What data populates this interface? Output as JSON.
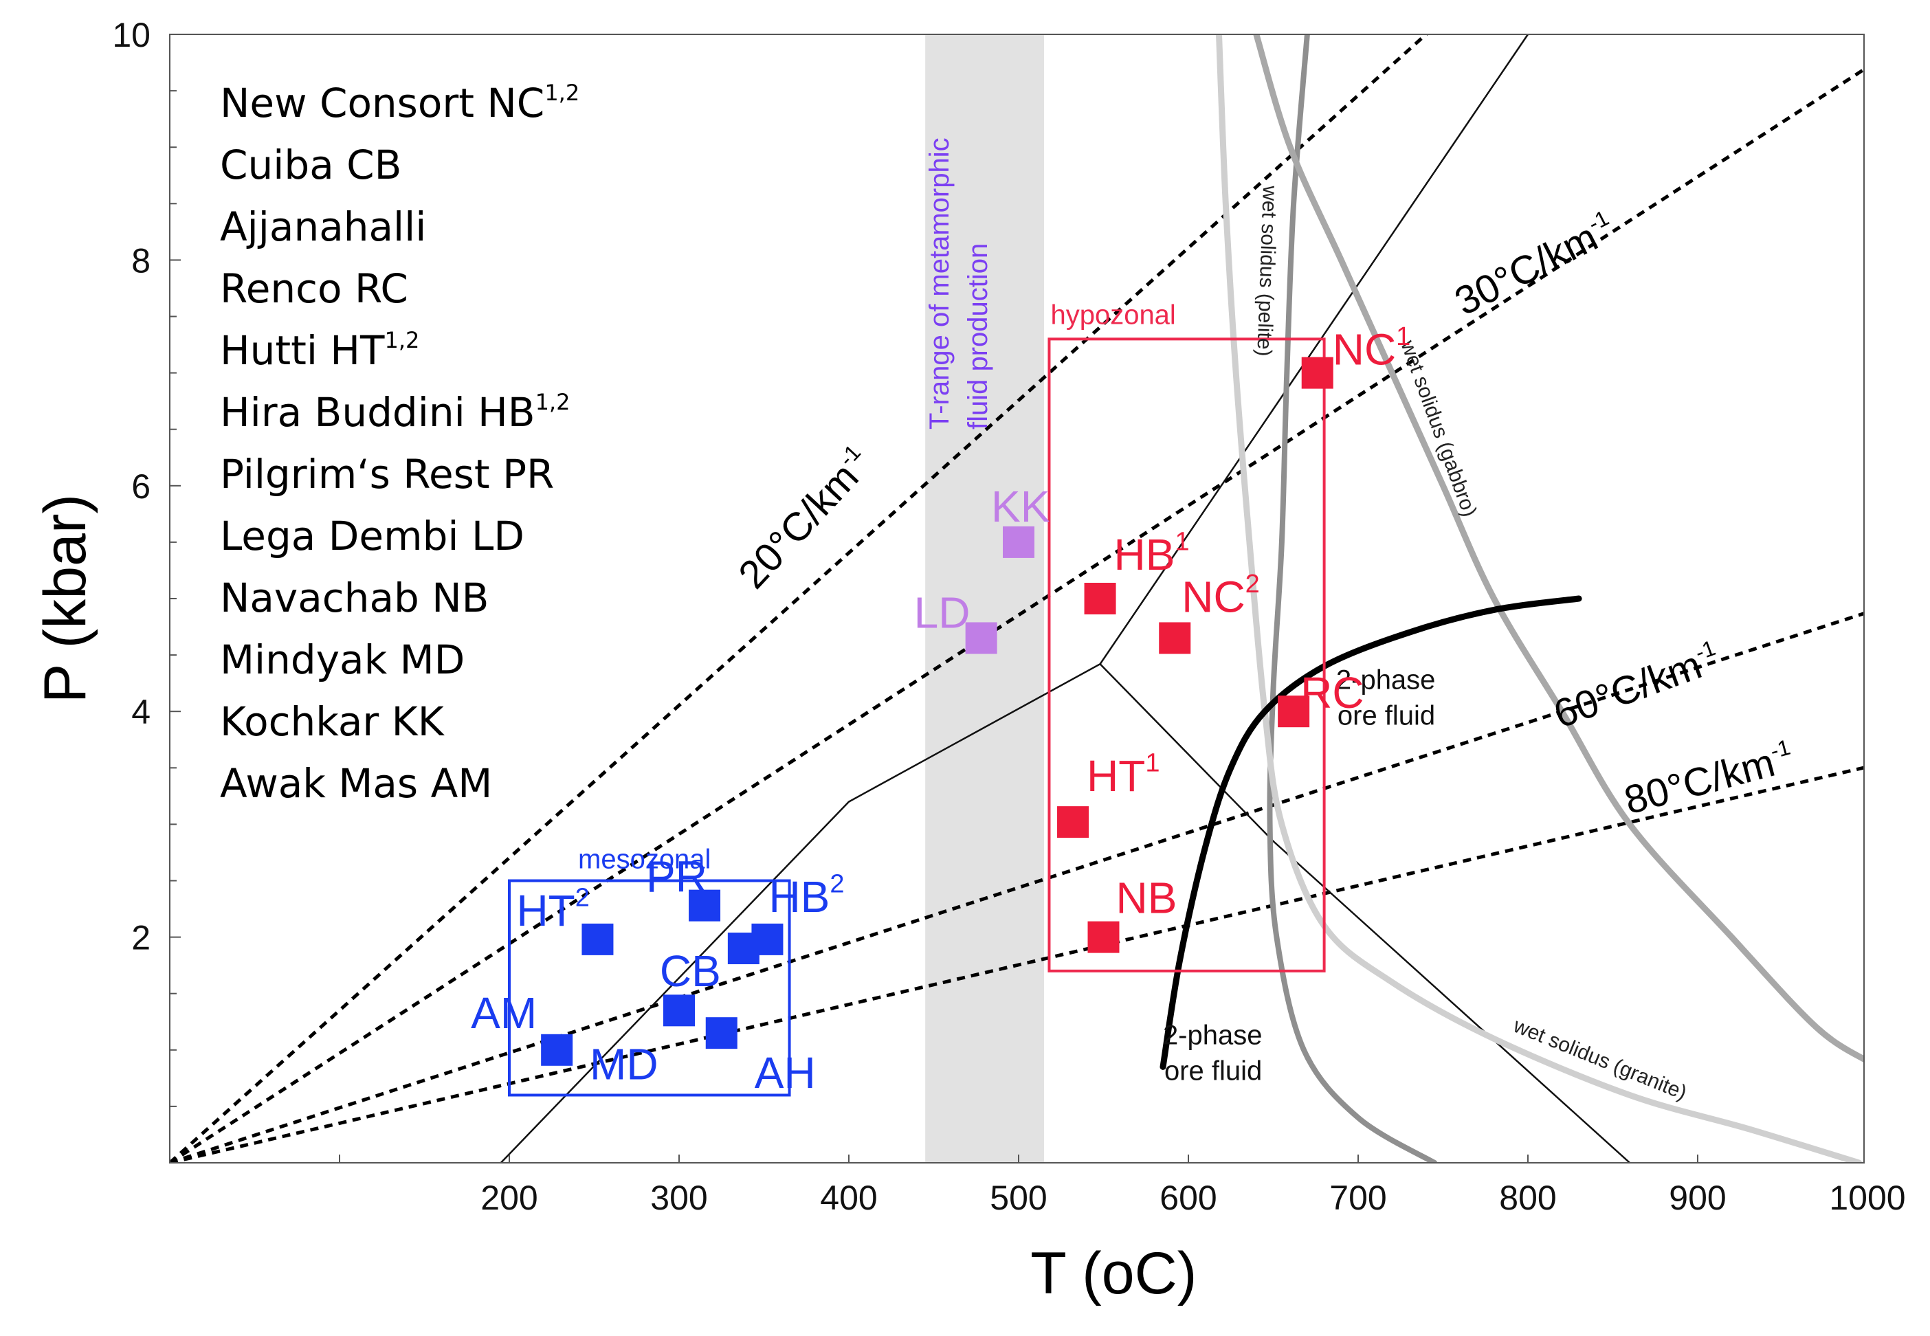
{
  "chart_data": {
    "type": "scatter",
    "xlabel": "T (oC)",
    "ylabel": "P (kbar)",
    "xlim": [
      0,
      1000
    ],
    "ylim": [
      0,
      10
    ],
    "x_ticks": [
      "200",
      "300",
      "400",
      "500",
      "600",
      "700",
      "800",
      "900",
      "1000"
    ],
    "y_ticks": [
      "2",
      "4",
      "6",
      "8",
      "10"
    ],
    "legend": [
      {
        "name": "New Consort NC",
        "sup": "1,2"
      },
      {
        "name": "Cuiba CB",
        "sup": ""
      },
      {
        "name": "Ajjanahalli",
        "sup": ""
      },
      {
        "name": "Renco RC",
        "sup": ""
      },
      {
        "name": "Hutti  HT",
        "sup": "1,2"
      },
      {
        "name": "Hira Buddini HB",
        "sup": "1,2"
      },
      {
        "name": "Pilgrim‘s Rest PR",
        "sup": ""
      },
      {
        "name": "Lega Dembi LD",
        "sup": ""
      },
      {
        "name": "Navachab NB",
        "sup": ""
      },
      {
        "name": "Mindyak MD",
        "sup": ""
      },
      {
        "name": "Kochkar KK",
        "sup": ""
      },
      {
        "name": "Awak Mas AM",
        "sup": ""
      }
    ],
    "gradients": [
      {
        "label": "20°C/km",
        "sup": "-1",
        "slope_c_per_kbar": 74
      },
      {
        "label": "30°C/km",
        "sup": "-1",
        "slope_c_per_kbar": 103
      },
      {
        "label": "60°C/km",
        "sup": "-1",
        "slope_c_per_kbar": 205
      },
      {
        "label": "80°C/km",
        "sup": "-1",
        "slope_c_per_kbar": 285
      }
    ],
    "fluid_band": {
      "label_line1": "T-range of metamorphic",
      "label_line2": "fluid production",
      "t_min": 445,
      "t_max": 515
    },
    "zones": [
      {
        "label": "mesozonal",
        "color": "#1a3cf0",
        "t_min": 200,
        "t_max": 365,
        "p_min": 0.6,
        "p_max": 2.5
      },
      {
        "label": "hypozonal",
        "color": "#ee2a4e",
        "t_min": 518,
        "t_max": 680,
        "p_min": 1.7,
        "p_max": 7.3
      }
    ],
    "series": [
      {
        "name": "mesozonal",
        "color": "#1a3cf0",
        "points": [
          {
            "label": "AM",
            "sup": "",
            "t": 228,
            "p": 1.0
          },
          {
            "label": "HT",
            "sup": "2",
            "t": 252,
            "p": 1.98
          },
          {
            "label": "PR",
            "sup": "",
            "t": 315,
            "p": 2.28
          },
          {
            "label": "HB",
            "sup": "2",
            "t": 352,
            "p": 1.98
          },
          {
            "label": "CB",
            "sup": "",
            "t": 338,
            "p": 1.9
          },
          {
            "label": "MD",
            "sup": "",
            "t": 300,
            "p": 1.35
          },
          {
            "label": "AH",
            "sup": "",
            "t": 325,
            "p": 1.15
          }
        ]
      },
      {
        "name": "transitional",
        "color": "#c07ee6",
        "points": [
          {
            "label": "KK",
            "sup": "",
            "t": 500,
            "p": 5.5
          },
          {
            "label": "LD",
            "sup": "",
            "t": 478,
            "p": 4.65
          }
        ]
      },
      {
        "name": "hypozonal",
        "color": "#ee1c3c",
        "points": [
          {
            "label": "NC",
            "sup": "1",
            "t": 676,
            "p": 7.0
          },
          {
            "label": "HB",
            "sup": "1",
            "t": 548,
            "p": 5.0
          },
          {
            "label": "NC",
            "sup": "2",
            "t": 592,
            "p": 4.65
          },
          {
            "label": "RC",
            "sup": "",
            "t": 662,
            "p": 4.0
          },
          {
            "label": "HT",
            "sup": "1",
            "t": 532,
            "p": 3.02
          },
          {
            "label": "NB",
            "sup": "",
            "t": 550,
            "p": 2.0
          }
        ]
      }
    ],
    "curves": [
      {
        "label": "wet solidus (pelite)",
        "color": "#8f8f8f",
        "points": [
          [
            670,
            10
          ],
          [
            662,
            8.5
          ],
          [
            658,
            7
          ],
          [
            655,
            5.5
          ],
          [
            650,
            4.2
          ],
          [
            648,
            3
          ],
          [
            652,
            2
          ],
          [
            668,
            1
          ],
          [
            700,
            0.4
          ],
          [
            745,
            0
          ]
        ]
      },
      {
        "label": "wet solidus (gabbro)",
        "color": "#a8a8a8",
        "points": [
          [
            640,
            10
          ],
          [
            660,
            9
          ],
          [
            690,
            8
          ],
          [
            720,
            7
          ],
          [
            750,
            6
          ],
          [
            780,
            5
          ],
          [
            820,
            4
          ],
          [
            860,
            3
          ],
          [
            920,
            2
          ],
          [
            970,
            1.2
          ],
          [
            1000,
            0.9
          ]
        ]
      },
      {
        "label": "wet solidus (granite)",
        "color": "#cfcfcf",
        "points": [
          [
            618,
            10
          ],
          [
            622,
            8.5
          ],
          [
            628,
            7
          ],
          [
            636,
            5.5
          ],
          [
            645,
            4
          ],
          [
            655,
            3
          ],
          [
            680,
            2.1
          ],
          [
            720,
            1.6
          ],
          [
            780,
            1.1
          ],
          [
            860,
            0.6
          ],
          [
            930,
            0.3
          ],
          [
            995,
            0
          ]
        ]
      },
      {
        "label": "2-phase ore fluid",
        "color": "#000000",
        "points": [
          [
            585,
            0.85
          ],
          [
            595,
            1.8
          ],
          [
            610,
            2.8
          ],
          [
            625,
            3.5
          ],
          [
            645,
            4.0
          ],
          [
            680,
            4.4
          ],
          [
            730,
            4.7
          ],
          [
            780,
            4.9
          ],
          [
            830,
            5.0
          ]
        ]
      }
    ],
    "reactions": [
      [
        [
          195,
          0
        ],
        [
          400,
          3.2
        ],
        [
          548,
          4.42
        ],
        [
          800,
          10
        ]
      ],
      [
        [
          548,
          4.42
        ],
        [
          650,
          2.85
        ],
        [
          720,
          1.9
        ],
        [
          860,
          0
        ]
      ]
    ],
    "fluid_labels": [
      {
        "line1": "2-phase",
        "line2": "ore fluid",
        "t": 687,
        "p": 4.2
      },
      {
        "line1": "2-phase",
        "line2": "ore fluid",
        "t": 585,
        "p": 1.05
      }
    ]
  }
}
